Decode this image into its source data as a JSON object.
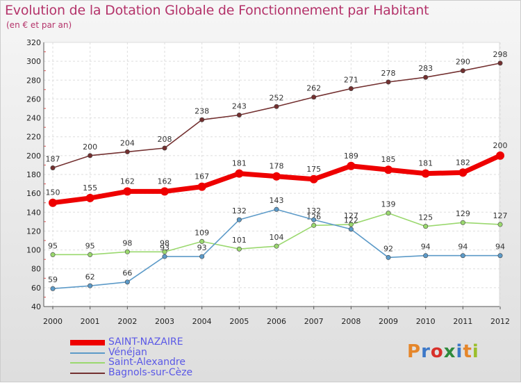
{
  "title": "Evolution de la Dotation Globale de Fonctionnement par Habitant",
  "subtitle": "(en € et par an)",
  "logo": {
    "text": "Proxiti",
    "colors": [
      "#e5862a",
      "#3c78c8",
      "#d8302a",
      "#2f8a3d",
      "#3c78c8",
      "#e5862a",
      "#9bbf2c"
    ]
  },
  "chart_data": {
    "type": "line",
    "x": [
      "2000",
      "2001",
      "2002",
      "2003",
      "2004",
      "2005",
      "2006",
      "2007",
      "2008",
      "2009",
      "2010",
      "2011",
      "2012"
    ],
    "ylim": [
      40,
      320
    ],
    "yticks": [
      "40",
      "60",
      "80",
      "100",
      "120",
      "140",
      "160",
      "180",
      "200",
      "220",
      "240",
      "260",
      "280",
      "300",
      "320"
    ],
    "grid": true,
    "legend_position": "bottom-left",
    "series": [
      {
        "name": "SAINT-NAZAIRE",
        "color": "#ee0000",
        "values": [
          150,
          155,
          162,
          162,
          167,
          181,
          178,
          175,
          189,
          185,
          181,
          182,
          200
        ]
      },
      {
        "name": "Vénéjan",
        "color": "#5c9ac8",
        "values": [
          59,
          62,
          66,
          93,
          93,
          132,
          143,
          132,
          122,
          92,
          94,
          94,
          94
        ]
      },
      {
        "name": "Saint-Alexandre",
        "color": "#9ad86e",
        "values": [
          95,
          95,
          98,
          98,
          109,
          101,
          104,
          126,
          127,
          139,
          125,
          129,
          127
        ]
      },
      {
        "name": "Bagnols-sur-Cèze",
        "color": "#733030",
        "values": [
          187,
          200,
          204,
          208,
          238,
          243,
          252,
          262,
          271,
          278,
          283,
          290,
          298
        ]
      }
    ]
  }
}
